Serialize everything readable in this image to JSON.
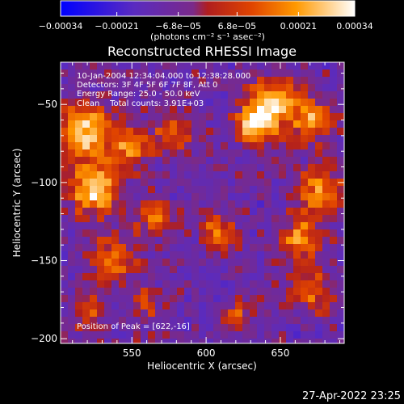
{
  "colorbar": {
    "tick_labels": [
      "−0.00034",
      "−0.00021",
      "−6.8e−05",
      "6.8e−05",
      "0.00021",
      "0.00034"
    ],
    "tick_values": [
      -0.00034,
      -0.00021,
      -6.8e-05,
      6.8e-05,
      0.00021,
      0.00034
    ],
    "range": [
      -0.00034,
      0.00034
    ],
    "unit_label": "(photons cm⁻² s⁻¹ asec⁻²)",
    "colors": [
      "#0000ff",
      "#5a2bc0",
      "#7a2a8a",
      "#b01e1e",
      "#e04400",
      "#ff9900",
      "#ffffff"
    ]
  },
  "chart_data": {
    "type": "heatmap",
    "title": "Reconstructed RHESSI Image",
    "xlabel": "Heliocentric X (arcsec)",
    "ylabel": "Heliocentric Y (arcsec)",
    "xlim": [
      502,
      693
    ],
    "ylim": [
      -203,
      -23
    ],
    "x_ticks": [
      550,
      600,
      650
    ],
    "y_ticks": [
      -50,
      -100,
      -150,
      -200
    ],
    "x_tick_labels": [
      "550",
      "600",
      "650"
    ],
    "y_tick_labels": [
      "−50",
      "−100",
      "−150",
      "−200"
    ],
    "annotations": [
      "10-Jan-2004 12:34:04.000 to 12:38:28.000",
      "Detectors: 3F 4F 5F 6F 7F 8F, Att 0",
      "Energy Range: 25.0 - 50.0 keV",
      "Clean    Total counts: 3.91E+03"
    ],
    "peak_label": "Position of Peak = [622,-16]",
    "grid": false
  },
  "footer": {
    "timestamp": "27-Apr-2022 23:25"
  }
}
